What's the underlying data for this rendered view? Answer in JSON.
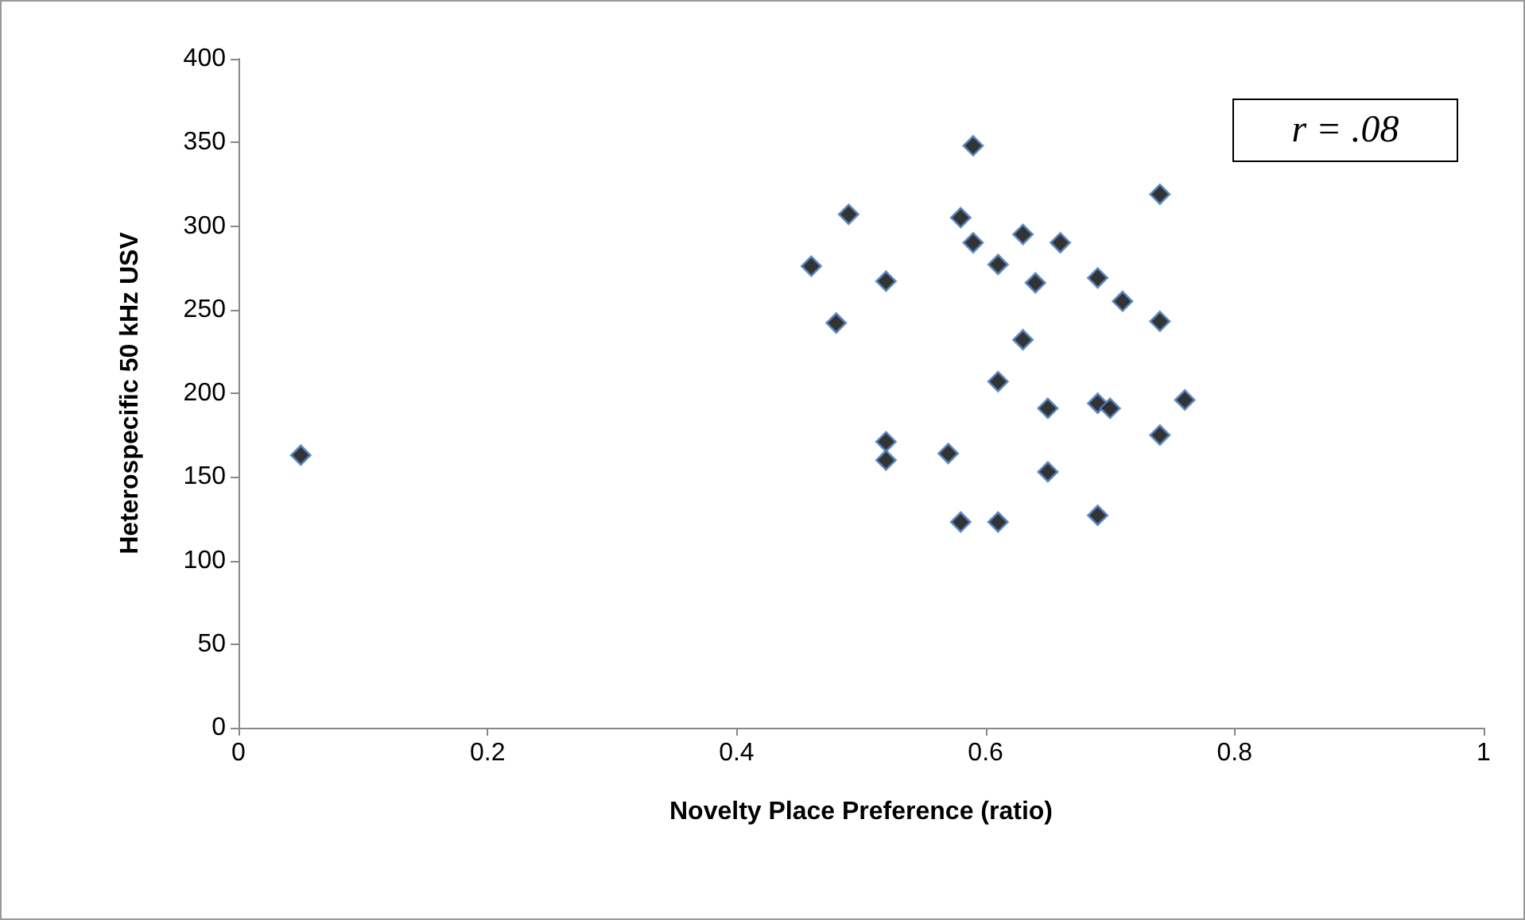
{
  "chart_data": {
    "type": "scatter",
    "xlabel": "Novelty Place Preference (ratio)",
    "ylabel": "Heterospecific 50 kHz USV",
    "annotations": [
      "r = .08"
    ],
    "x": [
      0.05,
      0.46,
      0.48,
      0.49,
      0.52,
      0.52,
      0.52,
      0.57,
      0.58,
      0.58,
      0.59,
      0.59,
      0.61,
      0.61,
      0.61,
      0.63,
      0.63,
      0.64,
      0.65,
      0.65,
      0.66,
      0.69,
      0.69,
      0.7,
      0.69,
      0.71,
      0.74,
      0.74,
      0.74,
      0.76
    ],
    "series": [
      {
        "color": "#000000",
        "values": [
          163,
          276,
          242,
          307,
          267,
          171,
          160,
          164,
          305,
          123,
          348,
          290,
          277,
          207,
          123,
          295,
          232,
          266,
          191,
          153,
          290,
          269,
          194,
          191,
          127,
          255,
          319,
          243,
          175,
          196
        ]
      }
    ],
    "xlim": [
      0,
      1
    ],
    "xticks": [
      0,
      0.2,
      0.4,
      0.6,
      0.8,
      1
    ],
    "ylim": [
      0,
      400
    ],
    "yticks": [
      0,
      50,
      100,
      150,
      200,
      250,
      300,
      350,
      400
    ],
    "grid": false,
    "marker": "diamond"
  }
}
